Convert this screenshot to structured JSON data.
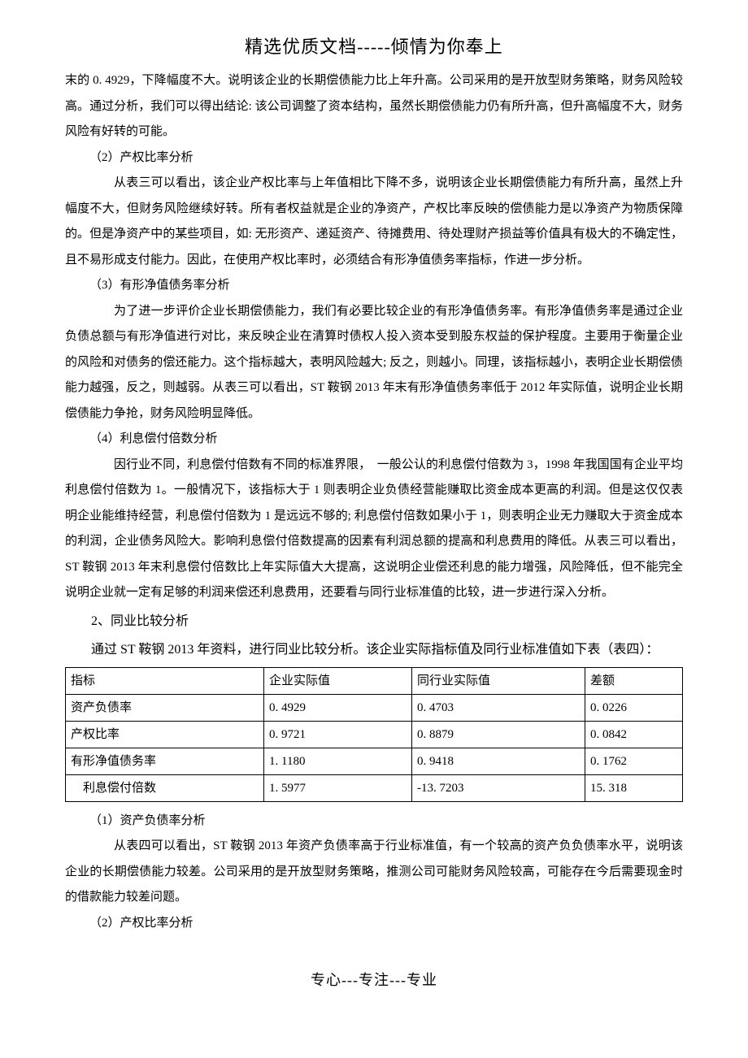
{
  "header": "精选优质文档-----倾情为你奉上",
  "footer": "专心---专注---专业",
  "paragraphs": {
    "p1": "末的 0. 4929，下降幅度不大。说明该企业的长期偿债能力比上年升高。公司采用的是开放型财务策略，财务风险较高。通过分析，我们可以得出结论: 该公司调整了资本结构，虽然长期偿债能力仍有所升高，但升高幅度不大，财务风险有好转的可能。",
    "h2": "（2）产权比率分析",
    "p2": "从表三可以看出，该企业产权比率与上年值相比下降不多，说明该企业长期偿债能力有所升高，虽然上升幅度不大，但财务风险继续好转。所有者权益就是企业的净资产，产权比率反映的偿债能力是以净资产为物质保障的。但是净资产中的某些项目，如: 无形资产、递延资产、待摊费用、待处理财产损益等价值具有极大的不确定性，且不易形成支付能力。因此，在使用产权比率时，必须结合有形净值债务率指标，作进一步分析。",
    "h3": "（3）有形净值债务率分析",
    "p3": "为了进一步评价企业长期偿债能力，我们有必要比较企业的有形净值债务率。有形净值债务率是通过企业负债总额与有形净值进行对比，来反映企业在清算时债权人投入资本受到股东权益的保护程度。主要用于衡量企业的风险和对债务的偿还能力。这个指标越大，表明风险越大; 反之，则越小。同理，该指标越小，表明企业长期偿债能力越强，反之，则越弱。从表三可以看出，ST 鞍钢 2013 年末有形净值债务率低于 2012 年实际值，说明企业长期偿债能力争抢，财务风险明显降低。",
    "h4": "（4）利息偿付倍数分析",
    "p4": "因行业不同，利息偿付倍数有不同的标准界限，　一般公认的利息偿付倍数为 3，1998 年我国国有企业平均利息偿付倍数为 1。一般情况下，该指标大于 1 则表明企业负债经营能赚取比资金成本更高的利润。但是这仅仅表明企业能维持经营，利息偿付倍数为 1 是远远不够的; 利息偿付倍数如果小于 1，则表明企业无力赚取大于资金成本的利润，企业债务风险大。影响利息偿付倍数提高的因素有利润总额的提高和利息费用的降低。从表三可以看出，ST 鞍钢 2013 年末利息偿付倍数比上年实际值大大提高，这说明企业偿还利息的能力增强，风险降低，但不能完全说明企业就一定有足够的利润来偿还利息费用，还要看与同行业标准值的比较，进一步进行深入分析。",
    "s2": "2、同业比较分析",
    "p5": "通过 ST 鞍钢 2013 年资料，进行同业比较分析。该企业实际指标值及同行业标准值如下表（表四）：",
    "h1b": "（1）资产负债率分析",
    "p6": "从表四可以看出，ST 鞍钢 2013 年资产负债率高于行业标准值，有一个较高的资产负负债率水平，说明该企业的长期偿债能力较差。公司采用的是开放型财务策略，推测公司可能财务风险较高，可能存在今后需要现金时的借款能力较差问题。",
    "h2b": "（2）产权比率分析"
  },
  "table4": {
    "columns": [
      "指标",
      "企业实际值",
      "同行业实际值",
      "差额"
    ],
    "rows": [
      [
        "资产负债率",
        "0. 4929",
        "0. 4703",
        "0. 0226"
      ],
      [
        "产权比率",
        "0. 9721",
        "0. 8879",
        "0. 0842"
      ],
      [
        "有形净值债务率",
        "1. 1180",
        "0. 9418",
        "0. 1762"
      ],
      [
        "　利息偿付倍数",
        "1. 5977",
        "-13. 7203",
        "15. 318"
      ]
    ],
    "border_color": "#000000",
    "font_size": 15
  }
}
